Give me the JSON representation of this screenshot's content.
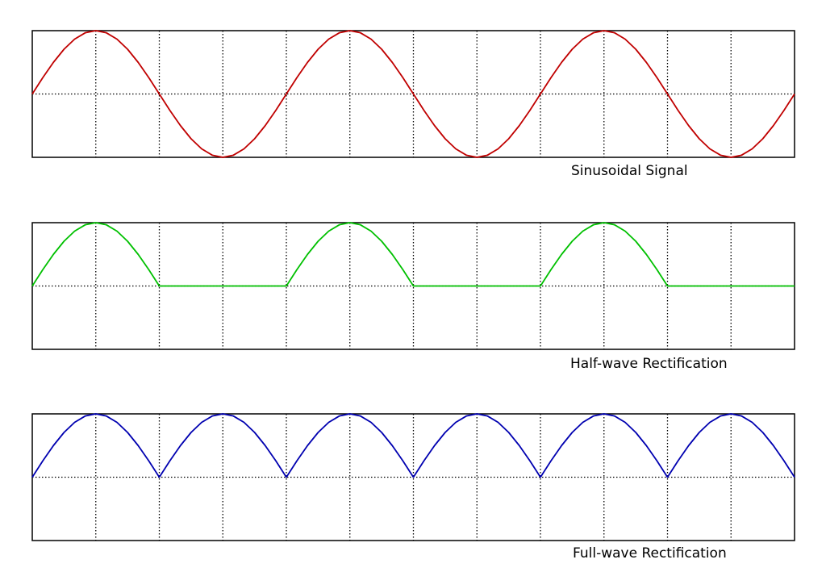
{
  "chart_data": [
    {
      "type": "line",
      "title": "Sinusoidal Signal",
      "color": "#c00000",
      "xlim": [
        0,
        1080
      ],
      "ylim": [
        -1,
        1
      ],
      "grid": true,
      "x": [
        0,
        15,
        30,
        45,
        60,
        75,
        90,
        105,
        120,
        135,
        150,
        165,
        180,
        195,
        210,
        225,
        240,
        255,
        270,
        285,
        300,
        315,
        330,
        345,
        360,
        375,
        390,
        405,
        420,
        435,
        450,
        465,
        480,
        495,
        510,
        525,
        540,
        555,
        570,
        585,
        600,
        615,
        630,
        645,
        660,
        675,
        690,
        705,
        720,
        735,
        750,
        765,
        780,
        795,
        810,
        825,
        840,
        855,
        870,
        885,
        900,
        915,
        930,
        945,
        960,
        975,
        990,
        1005,
        1020,
        1035,
        1050,
        1065,
        1080
      ],
      "values": [
        0,
        0.259,
        0.5,
        0.707,
        0.866,
        0.966,
        1,
        0.966,
        0.866,
        0.707,
        0.5,
        0.259,
        0,
        -0.259,
        -0.5,
        -0.707,
        -0.866,
        -0.966,
        -1,
        -0.966,
        -0.866,
        -0.707,
        -0.5,
        -0.259,
        0,
        0.259,
        0.5,
        0.707,
        0.866,
        0.966,
        1,
        0.966,
        0.866,
        0.707,
        0.5,
        0.259,
        0,
        -0.259,
        -0.5,
        -0.707,
        -0.866,
        -0.966,
        -1,
        -0.966,
        -0.866,
        -0.707,
        -0.5,
        -0.259,
        0,
        0.259,
        0.5,
        0.707,
        0.866,
        0.966,
        1,
        0.966,
        0.866,
        0.707,
        0.5,
        0.259,
        0,
        -0.259,
        -0.5,
        -0.707,
        -0.866,
        -0.966,
        -1,
        -0.966,
        -0.866,
        -0.707,
        -0.5,
        -0.259,
        0
      ]
    },
    {
      "type": "line",
      "title": "Half-wave Rectification",
      "color": "#00c000",
      "xlim": [
        0,
        1080
      ],
      "ylim": [
        -1,
        1
      ],
      "grid": true,
      "x": [
        0,
        15,
        30,
        45,
        60,
        75,
        90,
        105,
        120,
        135,
        150,
        165,
        180,
        195,
        210,
        225,
        240,
        255,
        270,
        285,
        300,
        315,
        330,
        345,
        360,
        375,
        390,
        405,
        420,
        435,
        450,
        465,
        480,
        495,
        510,
        525,
        540,
        555,
        570,
        585,
        600,
        615,
        630,
        645,
        660,
        675,
        690,
        705,
        720,
        735,
        750,
        765,
        780,
        795,
        810,
        825,
        840,
        855,
        870,
        885,
        900,
        915,
        930,
        945,
        960,
        975,
        990,
        1005,
        1020,
        1035,
        1050,
        1065,
        1080
      ],
      "values": [
        0,
        0.259,
        0.5,
        0.707,
        0.866,
        0.966,
        1,
        0.966,
        0.866,
        0.707,
        0.5,
        0.259,
        0,
        0,
        0,
        0,
        0,
        0,
        0,
        0,
        0,
        0,
        0,
        0,
        0,
        0.259,
        0.5,
        0.707,
        0.866,
        0.966,
        1,
        0.966,
        0.866,
        0.707,
        0.5,
        0.259,
        0,
        0,
        0,
        0,
        0,
        0,
        0,
        0,
        0,
        0,
        0,
        0,
        0,
        0.259,
        0.5,
        0.707,
        0.866,
        0.966,
        1,
        0.966,
        0.866,
        0.707,
        0.5,
        0.259,
        0,
        0,
        0,
        0,
        0,
        0,
        0,
        0,
        0,
        0,
        0,
        0,
        0
      ]
    },
    {
      "type": "line",
      "title": "Full-wave Rectification",
      "color": "#0000b0",
      "xlim": [
        0,
        1080
      ],
      "ylim": [
        -1,
        1
      ],
      "grid": true,
      "x": [
        0,
        15,
        30,
        45,
        60,
        75,
        90,
        105,
        120,
        135,
        150,
        165,
        180,
        195,
        210,
        225,
        240,
        255,
        270,
        285,
        300,
        315,
        330,
        345,
        360,
        375,
        390,
        405,
        420,
        435,
        450,
        465,
        480,
        495,
        510,
        525,
        540,
        555,
        570,
        585,
        600,
        615,
        630,
        645,
        660,
        675,
        690,
        705,
        720,
        735,
        750,
        765,
        780,
        795,
        810,
        825,
        840,
        855,
        870,
        885,
        900,
        915,
        930,
        945,
        960,
        975,
        990,
        1005,
        1020,
        1035,
        1050,
        1065,
        1080
      ],
      "values": [
        0,
        0.259,
        0.5,
        0.707,
        0.866,
        0.966,
        1,
        0.966,
        0.866,
        0.707,
        0.5,
        0.259,
        0,
        0.259,
        0.5,
        0.707,
        0.866,
        0.966,
        1,
        0.966,
        0.866,
        0.707,
        0.5,
        0.259,
        0,
        0.259,
        0.5,
        0.707,
        0.866,
        0.966,
        1,
        0.966,
        0.866,
        0.707,
        0.5,
        0.259,
        0,
        0.259,
        0.5,
        0.707,
        0.866,
        0.966,
        1,
        0.966,
        0.866,
        0.707,
        0.5,
        0.259,
        0,
        0.259,
        0.5,
        0.707,
        0.866,
        0.966,
        1,
        0.966,
        0.866,
        0.707,
        0.5,
        0.259,
        0,
        0.259,
        0.5,
        0.707,
        0.866,
        0.966,
        1,
        0.966,
        0.866,
        0.707,
        0.5,
        0.259,
        0
      ]
    }
  ]
}
